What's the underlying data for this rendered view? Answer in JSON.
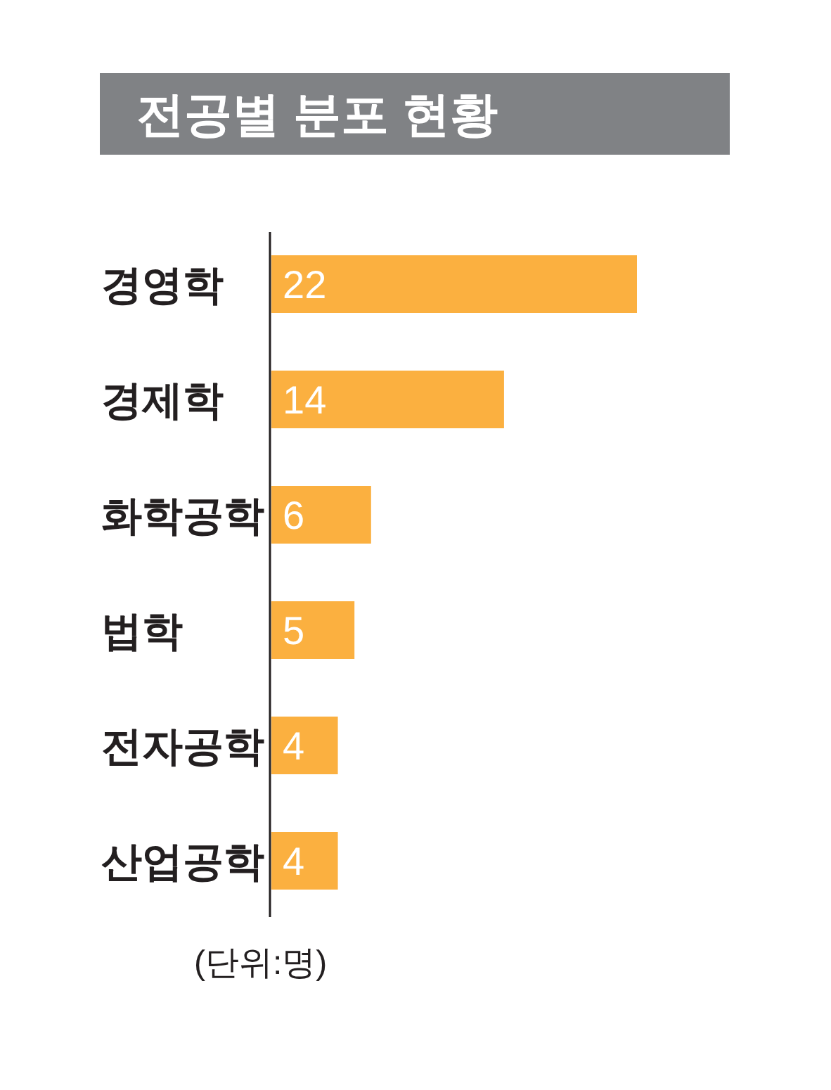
{
  "chart_data": {
    "type": "bar",
    "orientation": "horizontal",
    "title": "전공별 분포 현황",
    "categories": [
      "경영학",
      "경제학",
      "화학공학",
      "법학",
      "전자공학",
      "산업공학"
    ],
    "values": [
      22,
      14,
      6,
      5,
      4,
      4
    ],
    "color": "#fbb040",
    "data_labels": true,
    "annotations": [
      "(단위:명)"
    ]
  }
}
